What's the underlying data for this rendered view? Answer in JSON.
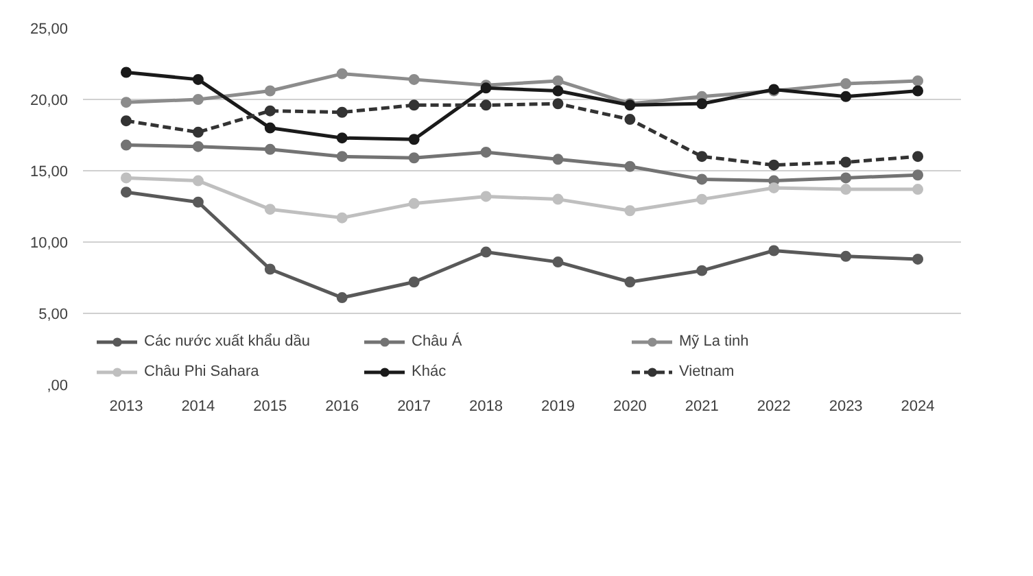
{
  "chart_data": {
    "type": "line",
    "categories": [
      "2013",
      "2014",
      "2015",
      "2016",
      "2017",
      "2018",
      "2019",
      "2020",
      "2021",
      "2022",
      "2023",
      "2024"
    ],
    "ylim": [
      0,
      25
    ],
    "yticks": [
      {
        "value": 0,
        "label": ",00"
      },
      {
        "value": 5,
        "label": "5,00"
      },
      {
        "value": 10,
        "label": "10,00"
      },
      {
        "value": 15,
        "label": "15,00"
      },
      {
        "value": 20,
        "label": "20,00"
      },
      {
        "value": 25,
        "label": "25,00"
      }
    ],
    "grid": "y",
    "legend": "bottom",
    "marker": "circle",
    "series": [
      {
        "name": "Các nước xuất khẩu dầu",
        "color": "#595959",
        "values": [
          13.5,
          12.8,
          8.1,
          6.1,
          7.2,
          9.3,
          8.6,
          7.2,
          8.0,
          9.4,
          9.0,
          8.8
        ]
      },
      {
        "name": "Châu Á",
        "color": "#737373",
        "values": [
          16.8,
          16.7,
          16.5,
          16.0,
          15.9,
          16.3,
          15.8,
          15.3,
          14.4,
          14.3,
          14.5,
          14.7
        ]
      },
      {
        "name": "Mỹ La tinh",
        "color": "#8c8c8c",
        "values": [
          19.8,
          20.0,
          20.6,
          21.8,
          21.4,
          21.0,
          21.3,
          19.7,
          20.2,
          20.6,
          21.1,
          21.3
        ]
      },
      {
        "name": "Châu Phi Sahara",
        "color": "#bfbfbf",
        "values": [
          14.5,
          14.3,
          12.3,
          11.7,
          12.7,
          13.2,
          13.0,
          12.2,
          13.0,
          13.8,
          13.7,
          13.7
        ]
      },
      {
        "name": "Khác",
        "color": "#1a1a1a",
        "values": [
          21.9,
          21.4,
          18.0,
          17.3,
          17.2,
          20.8,
          20.6,
          19.6,
          19.7,
          20.7,
          20.2,
          20.6
        ]
      },
      {
        "name": "Vietnam",
        "color": "#333333",
        "line_style": "dashed",
        "values": [
          18.5,
          17.7,
          19.2,
          19.1,
          19.6,
          19.6,
          19.7,
          18.6,
          16.0,
          15.4,
          15.6,
          16.0
        ]
      }
    ]
  }
}
